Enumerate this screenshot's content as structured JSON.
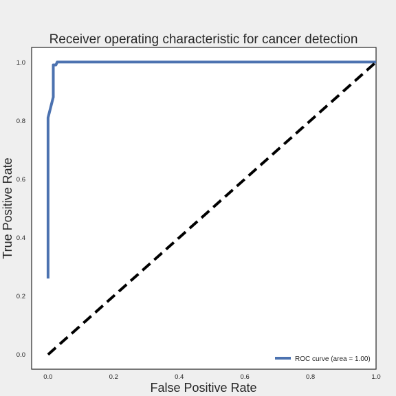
{
  "chart_data": {
    "type": "line",
    "title": "Receiver operating characteristic for cancer detection",
    "xlabel": "False Positive Rate",
    "ylabel": "True Positive Rate",
    "xlim": [
      -0.05,
      1.0
    ],
    "ylim": [
      -0.05,
      1.05
    ],
    "xticks": [
      "0.0",
      "0.2",
      "0.4",
      "0.6",
      "0.8",
      "1.0"
    ],
    "yticks": [
      "0.0",
      "0.2",
      "0.4",
      "0.6",
      "0.8",
      "1.0"
    ],
    "grid": false,
    "legend_position": "lower right",
    "series": [
      {
        "name": "ROC curve (area = 1.00)",
        "color": "#4c72b0",
        "style": "solid",
        "x": [
          0.0,
          0.0,
          0.0,
          0.016,
          0.016,
          0.016,
          0.024,
          0.028,
          0.028,
          1.0
        ],
        "y": [
          0.26,
          0.81,
          0.81,
          0.88,
          0.88,
          0.99,
          0.99,
          1.0,
          1.0,
          1.0
        ]
      },
      {
        "name": "",
        "color": "#000000",
        "style": "dashed",
        "x": [
          0.0,
          1.0
        ],
        "y": [
          0.0,
          1.0
        ]
      }
    ],
    "legend": [
      {
        "label": "ROC curve (area = 1.00)",
        "color": "#4c72b0"
      }
    ]
  }
}
